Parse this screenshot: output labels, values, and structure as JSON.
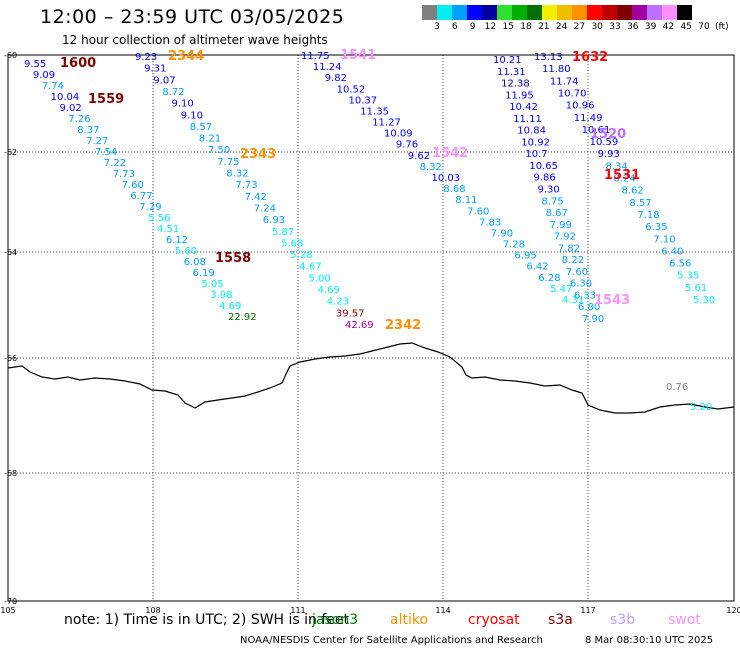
{
  "header": {
    "title": "12:00 – 23:59 UTC 03/05/2025",
    "subtitle": "12 hour collection of altimeter wave heights"
  },
  "color_scale": {
    "colors": [
      "#808080",
      "#00f0f0",
      "#00a0ff",
      "#0000ff",
      "#0000a0",
      "#30e030",
      "#00b000",
      "#007000",
      "#f0f000",
      "#f0c000",
      "#ff9000",
      "#ff0000",
      "#c00000",
      "#800000",
      "#a000a0",
      "#c070ff",
      "#ff90ff",
      "#000000"
    ],
    "labels": [
      "3",
      "6",
      "9",
      "12",
      "15",
      "18",
      "21",
      "24",
      "27",
      "30",
      "33",
      "36",
      "39",
      "42",
      "45",
      "70",
      "(ft)"
    ]
  },
  "axes": {
    "lat_labels": [
      "-60",
      "-62",
      "-64",
      "-66",
      "-68",
      "-70"
    ],
    "lon_labels": [
      "105",
      "108",
      "111",
      "114",
      "117",
      "120"
    ]
  },
  "passes": [
    {
      "id": "1600",
      "color": "#800000"
    },
    {
      "id": "1559",
      "color": "#800000"
    },
    {
      "id": "2344",
      "color": "#ff9000"
    },
    {
      "id": "2343",
      "color": "#ff9000"
    },
    {
      "id": "1558",
      "color": "#800000"
    },
    {
      "id": "1541",
      "color": "#ff90ff"
    },
    {
      "id": "1542",
      "color": "#ff90ff"
    },
    {
      "id": "2342",
      "color": "#ff9000"
    },
    {
      "id": "1632",
      "color": "#ff0000"
    },
    {
      "id": "1520",
      "color": "#c070ff"
    },
    {
      "id": "1531",
      "color": "#ff0000"
    },
    {
      "id": "1543",
      "color": "#ff90ff"
    }
  ],
  "wave_values": {
    "track_a": [
      "9.55",
      "9.09",
      "7.74",
      "10.04",
      "9.02",
      "7.26",
      "8.37",
      "7.27",
      "7.54",
      "7.22",
      "7.73",
      "7.60",
      "6.77",
      "7.29",
      "5.56",
      "4.51",
      "6.12",
      "5.60",
      "6.08",
      "6.19",
      "5.05",
      "3.98",
      "4.69",
      "22.92"
    ],
    "track_b": [
      "9.23",
      "9.31",
      "9.07",
      "8.72",
      "9.10",
      "9.10",
      "8.57",
      "8.21",
      "7.50",
      "7.75",
      "8.32",
      "7.73",
      "7.42",
      "7.24",
      "6.93",
      "5.87",
      "5.68",
      "5.28",
      "4.67",
      "5.00",
      "4.69",
      "4.23",
      "39.57",
      "42.69"
    ],
    "track_c": [
      "11.75",
      "11.24",
      "9.82",
      "10.52",
      "10.37",
      "11.35",
      "11.27",
      "10.09",
      "9.76",
      "9.62",
      "8.32",
      "10.03",
      "8.68",
      "8.11",
      "7.60",
      "7.83",
      "7.90",
      "7.28",
      "6.95",
      "6.42",
      "6.28",
      "5.47",
      "4.31"
    ],
    "track_d": [
      "10.21",
      "11.31",
      "12.38",
      "11.95",
      "10.42",
      "11.11",
      "10.84",
      "10.92",
      "10.7",
      "10.65",
      "9.86",
      "9.30",
      "8.75",
      "8.67",
      "7.99",
      "7.92",
      "7.82",
      "8.22",
      "7.60",
      "6.30",
      "6.33",
      "6.80",
      "7.90"
    ],
    "track_e": [
      "13.13",
      "11.80",
      "11.74",
      "10.70",
      "10.96",
      "11.49",
      "10.61",
      "10.59",
      "9.93",
      "8.34",
      "8.24",
      "8.62",
      "8.57",
      "7.18",
      "6.35",
      "7.10",
      "6.40",
      "6.56",
      "5.35",
      "5.61",
      "5.30"
    ],
    "coastal": [
      "0.76",
      "5.20"
    ]
  },
  "legend": {
    "note": "note: 1) Time is in UTC; 2) SWH is in feet",
    "satellites": [
      {
        "name": "jason3",
        "color": "#008000"
      },
      {
        "name": "altiko",
        "color": "#ff9000"
      },
      {
        "name": "cryosat",
        "color": "#ff0000"
      },
      {
        "name": "s3a",
        "color": "#800000"
      },
      {
        "name": "s3b",
        "color": "#c0a0ff"
      },
      {
        "name": "swot",
        "color": "#ff90ff"
      }
    ]
  },
  "footer": {
    "agency": "NOAA/NESDIS Center for Satellite Applications and Research",
    "timestamp": "8 Mar 08:30:10 UTC 2025"
  }
}
